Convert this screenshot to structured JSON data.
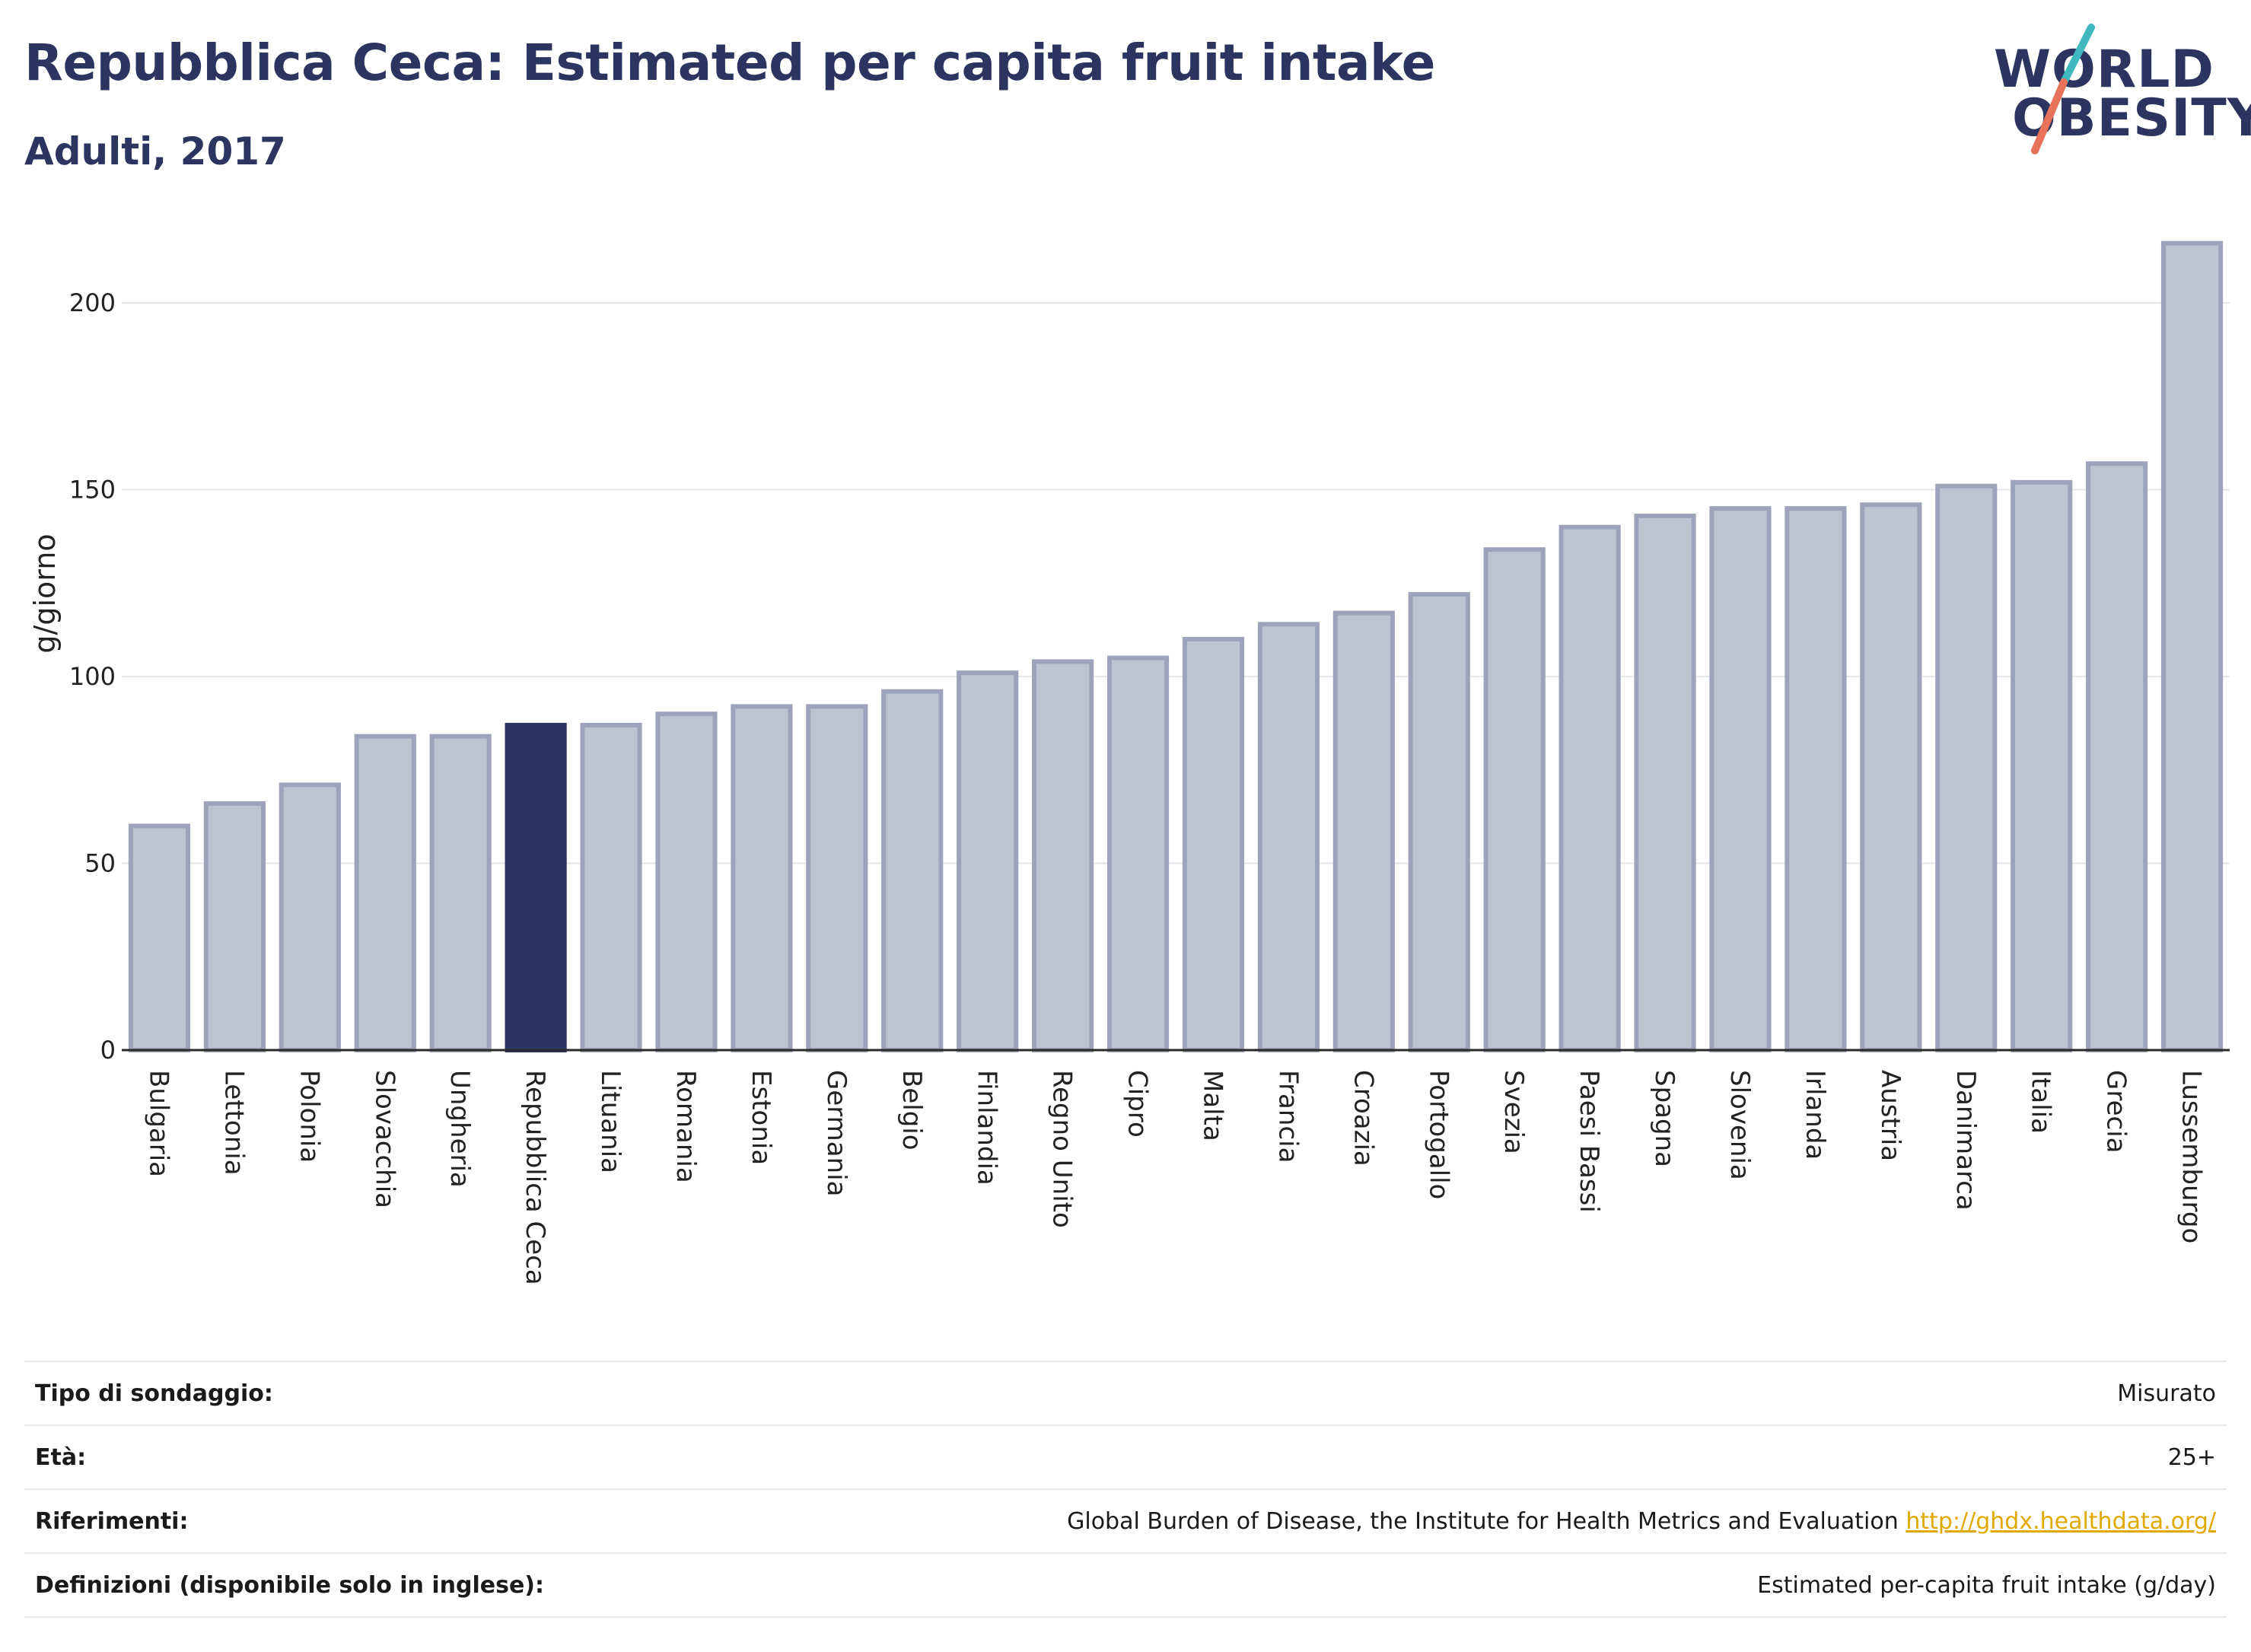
{
  "header": {
    "title": "Repubblica Ceca: Estimated per capita fruit intake",
    "subtitle": "Adulti, 2017"
  },
  "logo": {
    "line1": "WORLD",
    "line2": "OBESITY",
    "icon": "world-obesity-logo",
    "slash_colors": [
      "#3fb8c0",
      "#e8735a"
    ]
  },
  "chart_data": {
    "type": "bar",
    "ylabel": "g/giorno",
    "ylim": [
      0,
      220
    ],
    "yticks": [
      0,
      50,
      100,
      150,
      200
    ],
    "grid": true,
    "highlight": "Repubblica Ceca",
    "colors": {
      "bar": "#bfc2d0",
      "bar_border": "#9ea3bb",
      "highlight": "#2c3560"
    },
    "categories": [
      "Bulgaria",
      "Lettonia",
      "Polonia",
      "Slovacchia",
      "Ungheria",
      "Repubblica Ceca",
      "Lituania",
      "Romania",
      "Estonia",
      "Germania",
      "Belgio",
      "Finlandia",
      "Regno Unito",
      "Cipro",
      "Malta",
      "Francia",
      "Croazia",
      "Portogallo",
      "Svezia",
      "Paesi Bassi",
      "Spagna",
      "Slovenia",
      "Irlanda",
      "Austria",
      "Danimarca",
      "Italia",
      "Grecia",
      "Lussemburgo"
    ],
    "values": [
      60,
      66,
      71,
      84,
      84,
      87,
      87,
      90,
      92,
      92,
      96,
      101,
      104,
      105,
      110,
      114,
      117,
      122,
      134,
      140,
      143,
      145,
      145,
      146,
      151,
      152,
      157,
      216
    ]
  },
  "meta": [
    {
      "label": "Tipo di sondaggio:",
      "value": "Misurato"
    },
    {
      "label": "Età:",
      "value": "25+"
    },
    {
      "label": "Riferimenti:",
      "value": "Global Burden of Disease, the Institute for Health Metrics and Evaluation",
      "link": "http://ghdx.healthdata.org/"
    },
    {
      "label": "Definizioni (disponibile solo in inglese):",
      "value": "Estimated per-capita fruit intake (g/day)"
    }
  ]
}
